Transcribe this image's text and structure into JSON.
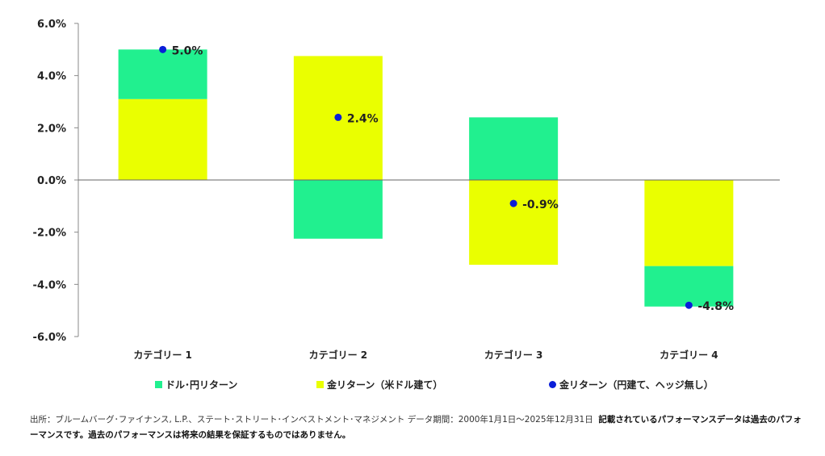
{
  "chart_data": {
    "type": "bar",
    "stacked": true,
    "title": "",
    "xlabel": "",
    "ylabel": "",
    "ylim": [
      -6,
      6
    ],
    "yticks": [
      6,
      4,
      2,
      0,
      -2,
      -4,
      -6
    ],
    "ytick_labels": [
      "6.0%",
      "4.0%",
      "2.0%",
      "0.0%",
      "-2.0%",
      "-4.0%",
      "-6.0%"
    ],
    "categories": [
      "カテゴリー 1",
      "カテゴリー 2",
      "カテゴリー 3",
      "カテゴリー 4"
    ],
    "series": [
      {
        "name": "ドル･円リターン",
        "kind": "bar",
        "color": "#21F08F",
        "values": [
          1.9,
          -2.25,
          2.4,
          -1.55
        ]
      },
      {
        "name": "金リターン（米ドル建て）",
        "kind": "bar",
        "color": "#EAFF00",
        "values": [
          3.1,
          4.75,
          -3.25,
          -3.3
        ]
      },
      {
        "name": "金リターン（円建て、ヘッジ無し）",
        "kind": "point",
        "color": "#0A1ED8",
        "values": [
          5.0,
          2.4,
          -0.9,
          -4.8
        ],
        "labels": [
          "5.0%",
          "2.4%",
          "-0.9%",
          "-4.8%"
        ]
      }
    ],
    "legend_position": "bottom",
    "grid": false
  },
  "footer": {
    "source": "出所：ブルームバーグ･ファイナンス, L.P.、ステート･ストリート･インベストメント･マネジメント データ期間：2000年1月1日～2025年12月31日",
    "disclaimer": "記載されているパフォーマンスデータは過去のパフォーマンスです。過去のパフォーマンスは将来の結果を保証するものではありません。"
  }
}
